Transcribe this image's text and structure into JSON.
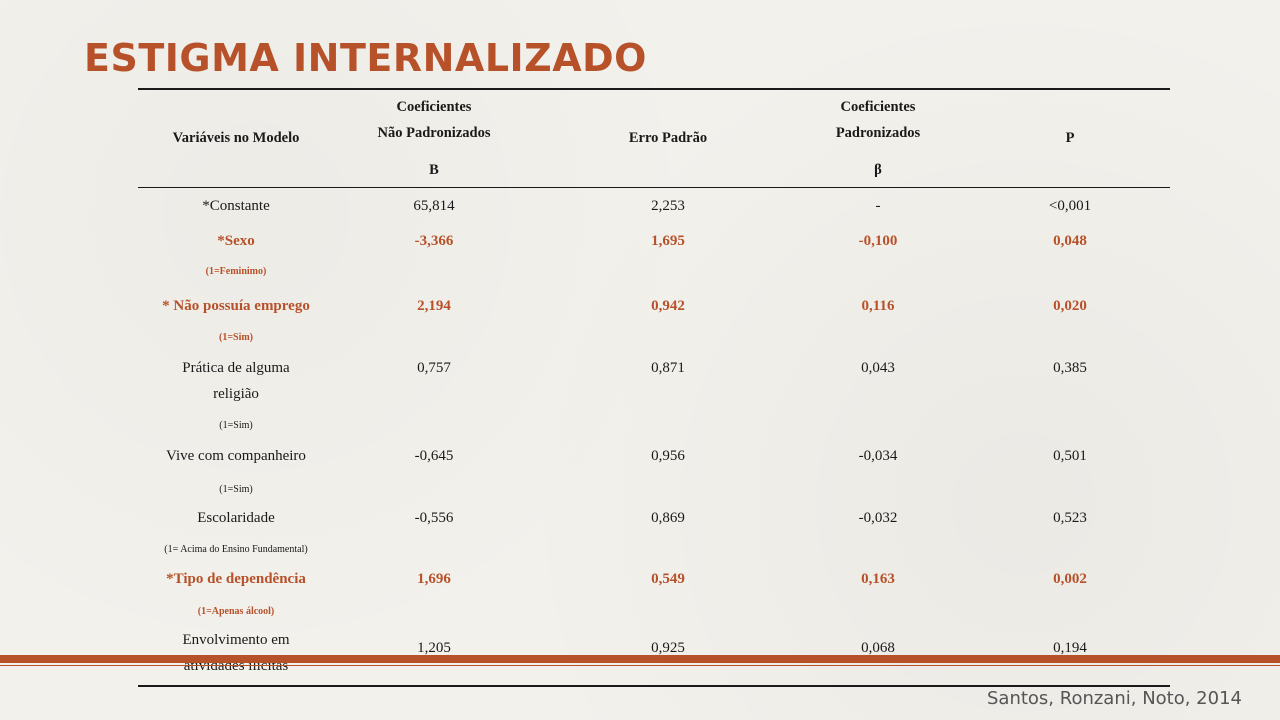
{
  "title": "ESTIGMA INTERNALIZADO",
  "header": {
    "variaveis": "Variáveis no Modelo",
    "coef_np_1": "Coeficientes",
    "coef_np_2": "Não Padronizados",
    "erro": "Erro Padrão",
    "coef_p_1": "Coeficientes",
    "coef_p_2": "Padronizados",
    "p": "P",
    "b": "B",
    "beta": "β"
  },
  "rows": [
    {
      "label": "*Constante",
      "b": "65,814",
      "se": "2,253",
      "beta": "-",
      "p": "<0,001"
    },
    {
      "label": "*Sexo",
      "sub": "(1=Feminimo)",
      "b": "-3,366",
      "se": "1,695",
      "beta": "-0,100",
      "p": "0,048",
      "sig": true
    },
    {
      "label": "* Não possuía emprego",
      "sub": "(1=Sim)",
      "b": "2,194",
      "se": "0,942",
      "beta": "0,116",
      "p": "0,020",
      "sig": true
    },
    {
      "label1": "Prática de alguma",
      "label2": "religião",
      "sub": "(1=Sim)",
      "b": "0,757",
      "se": "0,871",
      "beta": "0,043",
      "p": "0,385"
    },
    {
      "label": "Vive com companheiro",
      "sub": "(1=Sim)",
      "b": "-0,645",
      "se": "0,956",
      "beta": "-0,034",
      "p": "0,501"
    },
    {
      "label": "Escolaridade",
      "sub": "(1= Acima do Ensino Fundamental)",
      "b": "-0,556",
      "se": "0,869",
      "beta": "-0,032",
      "p": "0,523"
    },
    {
      "label": "*Tipo de dependência",
      "sub": "(1=Apenas álcool)",
      "b": "1,696",
      "se": "0,549",
      "beta": "0,163",
      "p": "0,002",
      "sig": true
    },
    {
      "label1": "Envolvimento em",
      "label2": "atividades ilícitas",
      "b": "1,205",
      "se": "0,925",
      "beta": "0,068",
      "p": "0,194"
    }
  ],
  "citation": "Santos, Ronzani, Noto, 2014",
  "colors": {
    "accent": "#b7512a",
    "text": "#1a1a1a",
    "background": "#f3f1ec"
  }
}
